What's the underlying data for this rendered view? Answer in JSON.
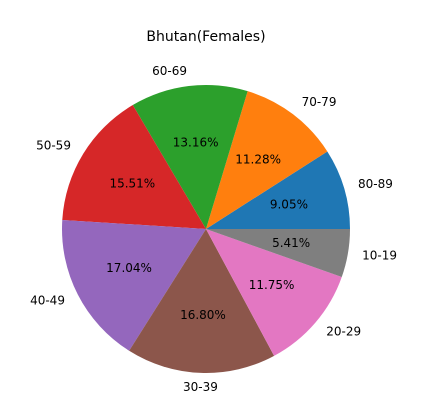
{
  "chart_data": {
    "type": "pie",
    "title": "Bhutan(Females)",
    "start_angle_deg": 0,
    "direction": "counterclockwise",
    "slices": [
      {
        "label": "80-89",
        "value": 9.05,
        "pct_label": "9.05%",
        "color": "#1f77b4"
      },
      {
        "label": "70-79",
        "value": 11.28,
        "pct_label": "11.28%",
        "color": "#ff7f0e"
      },
      {
        "label": "60-69",
        "value": 13.16,
        "pct_label": "13.16%",
        "color": "#2ca02c"
      },
      {
        "label": "50-59",
        "value": 15.51,
        "pct_label": "15.51%",
        "color": "#d62728"
      },
      {
        "label": "40-49",
        "value": 17.04,
        "pct_label": "17.04%",
        "color": "#9467bd"
      },
      {
        "label": "30-39",
        "value": 16.8,
        "pct_label": "16.80%",
        "color": "#8c564b"
      },
      {
        "label": "20-29",
        "value": 11.75,
        "pct_label": "11.75%",
        "color": "#e377c2"
      },
      {
        "label": "10-19",
        "value": 5.41,
        "pct_label": "5.41%",
        "color": "#7f7f7f"
      }
    ]
  }
}
